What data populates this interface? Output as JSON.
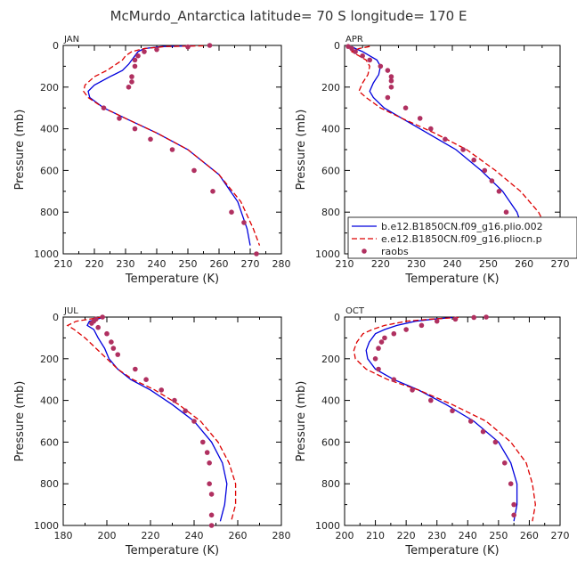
{
  "title": "McMurdo_Antarctica  latitude= 70 S longitude= 170 E",
  "colors": {
    "model1": "#0000dd",
    "model2": "#dd0000",
    "obs": "#b03060",
    "axis": "#000000"
  },
  "legend": [
    {
      "label": "b.e12.B1850CN.f09_g16.plio.002",
      "style": "solid",
      "color": "#0000dd"
    },
    {
      "label": "e.e12.B1850CN.f09_g16.pliocn.p",
      "style": "dashed",
      "color": "#dd0000"
    },
    {
      "label": "raobs",
      "style": "dots",
      "color": "#b03060"
    }
  ],
  "chart_data": [
    {
      "type": "line",
      "panel": "JAN",
      "xlabel": "Temperature (K)",
      "ylabel": "Pressure (mb)",
      "xlim": [
        210,
        280
      ],
      "ylim": [
        1000,
        0
      ],
      "xticks": [
        210,
        220,
        230,
        240,
        250,
        260,
        270,
        280
      ],
      "yticks": [
        0,
        200,
        400,
        600,
        800,
        1000
      ],
      "series": [
        {
          "name": "b.e12.B1850CN.f09_g16.plio.002",
          "style": "solid",
          "color": "#0000dd",
          "x": [
            252,
            242,
            236,
            234,
            233,
            232,
            231,
            229,
            225,
            220,
            218,
            218.5,
            223,
            230,
            240,
            250,
            260,
            266,
            269,
            270
          ],
          "y": [
            2,
            5,
            15,
            30,
            50,
            70,
            90,
            120,
            150,
            190,
            220,
            250,
            300,
            350,
            420,
            500,
            620,
            750,
            880,
            960
          ]
        },
        {
          "name": "e.e12.B1850CN.f09_g16.pliocn.p",
          "style": "dashed",
          "color": "#dd0000",
          "x": [
            255,
            243,
            236,
            232,
            230,
            229,
            227,
            224,
            220,
            217,
            216.5,
            218,
            223,
            230,
            240,
            250,
            260,
            267,
            271,
            273
          ],
          "y": [
            2,
            5,
            15,
            30,
            50,
            70,
            90,
            120,
            150,
            190,
            220,
            250,
            300,
            350,
            420,
            500,
            620,
            750,
            880,
            960
          ]
        },
        {
          "name": "raobs",
          "style": "dots",
          "color": "#b03060",
          "x": [
            257,
            250,
            240,
            236,
            234,
            233,
            233,
            232,
            232,
            231,
            223,
            228,
            233,
            238,
            245,
            252,
            258,
            264,
            268,
            272
          ],
          "y": [
            0,
            7,
            20,
            30,
            50,
            70,
            100,
            150,
            175,
            200,
            300,
            350,
            400,
            450,
            500,
            600,
            700,
            800,
            850,
            1000
          ]
        }
      ]
    },
    {
      "type": "line",
      "panel": "APR",
      "xlabel": "Temperature (K)",
      "ylabel": "Pressure (mb)",
      "xlim": [
        210,
        270
      ],
      "ylim": [
        1000,
        0
      ],
      "xticks": [
        210,
        220,
        230,
        240,
        250,
        260,
        270
      ],
      "yticks": [
        0,
        200,
        400,
        600,
        800,
        1000
      ],
      "series": [
        {
          "name": "b.e12.B1850CN.f09_g16.plio.002",
          "style": "solid",
          "color": "#0000dd",
          "x": [
            212,
            213,
            215,
            217,
            219,
            220,
            219.5,
            218,
            217,
            218,
            221,
            226,
            233,
            241,
            248,
            254,
            258,
            260,
            261
          ],
          "y": [
            5,
            15,
            30,
            50,
            70,
            100,
            140,
            180,
            220,
            250,
            300,
            350,
            420,
            500,
            600,
            700,
            800,
            900,
            960
          ]
        },
        {
          "name": "e.e12.B1850CN.f09_g16.pliocn.p",
          "style": "dashed",
          "color": "#dd0000",
          "x": [
            217,
            214,
            212,
            214,
            216,
            217,
            216.5,
            215,
            214,
            216,
            220,
            226,
            235,
            244,
            252,
            259,
            264,
            267,
            269
          ],
          "y": [
            5,
            15,
            30,
            50,
            70,
            100,
            140,
            180,
            220,
            250,
            300,
            350,
            420,
            500,
            600,
            700,
            800,
            900,
            960
          ]
        },
        {
          "name": "raobs",
          "style": "dots",
          "color": "#b03060",
          "x": [
            211,
            212,
            213,
            215,
            217,
            220,
            222,
            223,
            223,
            223,
            222,
            227,
            231,
            234,
            238,
            243,
            246,
            249,
            251,
            253,
            255,
            256,
            256
          ],
          "y": [
            5,
            15,
            30,
            50,
            70,
            100,
            120,
            150,
            170,
            200,
            250,
            300,
            350,
            400,
            450,
            500,
            550,
            600,
            650,
            700,
            800,
            900,
            1000
          ]
        }
      ]
    },
    {
      "type": "line",
      "panel": "JUL",
      "xlabel": "Temperature (K)",
      "ylabel": "Pressure (mb)",
      "xlim": [
        180,
        280
      ],
      "ylim": [
        1000,
        0
      ],
      "xticks": [
        180,
        200,
        220,
        240,
        260,
        280
      ],
      "yticks": [
        0,
        200,
        400,
        600,
        800,
        1000
      ],
      "series": [
        {
          "name": "b.e12.B1850CN.f09_g16.plio.002",
          "style": "solid",
          "color": "#0000dd",
          "x": [
            199,
            192,
            191,
            194,
            196,
            199,
            201,
            205,
            211,
            220,
            230,
            240,
            248,
            253,
            255,
            254,
            252
          ],
          "y": [
            0,
            20,
            40,
            60,
            100,
            150,
            200,
            250,
            300,
            350,
            420,
            500,
            600,
            700,
            800,
            900,
            980
          ]
        },
        {
          "name": "e.e12.B1850CN.f09_g16.pliocn.p",
          "style": "dashed",
          "color": "#dd0000",
          "x": [
            198,
            186,
            182,
            185,
            190,
            195,
            200,
            205,
            212,
            222,
            233,
            243,
            251,
            256,
            259,
            259,
            257
          ],
          "y": [
            0,
            20,
            40,
            60,
            100,
            150,
            200,
            250,
            300,
            350,
            420,
            500,
            600,
            700,
            800,
            900,
            980
          ]
        },
        {
          "name": "raobs",
          "style": "dots",
          "color": "#b03060",
          "x": [
            198,
            195,
            194,
            193,
            196,
            200,
            202,
            203,
            205,
            213,
            218,
            225,
            231,
            236,
            240,
            244,
            246,
            247,
            247,
            248,
            248,
            248
          ],
          "y": [
            0,
            10,
            20,
            30,
            50,
            80,
            120,
            150,
            180,
            250,
            300,
            350,
            400,
            450,
            500,
            600,
            650,
            700,
            800,
            850,
            950,
            1000
          ]
        }
      ]
    },
    {
      "type": "line",
      "panel": "OCT",
      "xlabel": "Temperature (K)",
      "ylabel": "Pressure (mb)",
      "xlim": [
        200,
        270
      ],
      "ylim": [
        1000,
        0
      ],
      "xticks": [
        200,
        210,
        220,
        230,
        240,
        250,
        260,
        270
      ],
      "yticks": [
        0,
        200,
        400,
        600,
        800,
        1000
      ],
      "series": [
        {
          "name": "b.e12.B1850CN.f09_g16.plio.002",
          "style": "solid",
          "color": "#0000dd",
          "x": [
            235,
            229,
            223,
            217,
            213,
            210,
            208,
            207,
            207.5,
            210,
            216,
            224,
            233,
            242,
            250,
            254,
            256,
            256,
            255
          ],
          "y": [
            2,
            10,
            20,
            40,
            60,
            80,
            120,
            160,
            200,
            250,
            300,
            350,
            420,
            500,
            600,
            700,
            800,
            900,
            980
          ]
        },
        {
          "name": "e.e12.B1850CN.f09_g16.pliocn.p",
          "style": "dashed",
          "color": "#dd0000",
          "x": [
            237,
            228,
            220,
            213,
            209,
            206,
            204,
            203,
            203.5,
            207,
            214,
            224,
            235,
            246,
            254,
            259,
            261,
            262,
            261
          ],
          "y": [
            2,
            10,
            20,
            40,
            60,
            80,
            120,
            160,
            200,
            250,
            300,
            350,
            420,
            500,
            600,
            700,
            800,
            900,
            980
          ]
        },
        {
          "name": "raobs",
          "style": "dots",
          "color": "#b03060",
          "x": [
            246,
            242,
            236,
            230,
            225,
            220,
            216,
            213,
            212,
            211,
            210,
            211,
            216,
            222,
            228,
            235,
            241,
            245,
            249,
            252,
            254,
            255,
            255
          ],
          "y": [
            0,
            2,
            10,
            20,
            40,
            60,
            80,
            100,
            120,
            150,
            200,
            250,
            300,
            350,
            400,
            450,
            500,
            550,
            600,
            700,
            800,
            900,
            950
          ]
        }
      ]
    }
  ]
}
